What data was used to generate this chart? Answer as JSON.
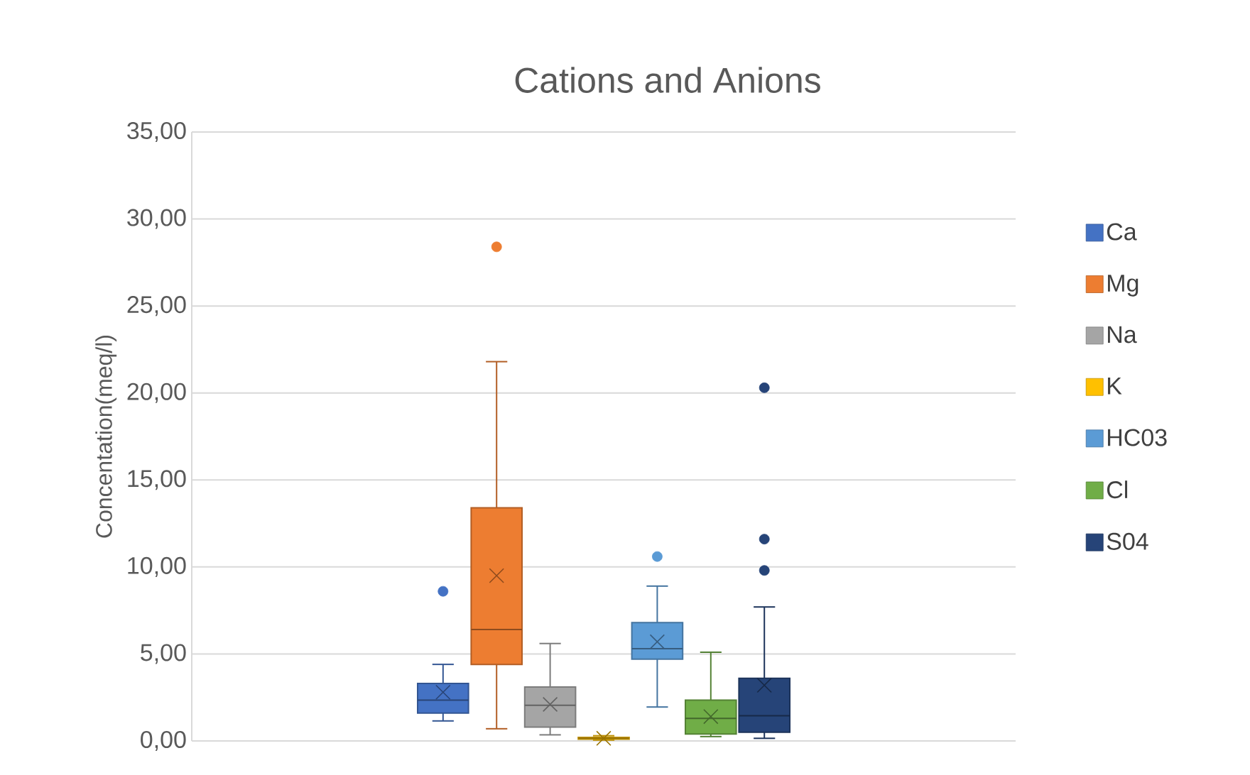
{
  "chart_data": {
    "type": "box",
    "title": "Cations and Anions",
    "ylabel": "Concentation(meq/l)",
    "categories": [
      null
    ],
    "series": [
      {
        "name": "Ca",
        "color": "#4472c4",
        "boxes": [
          {
            "low": 1.15,
            "q1": 1.6,
            "median": 2.35,
            "q3": 3.3,
            "high": 4.4,
            "mean": 2.8,
            "outliers": [
              8.6
            ]
          }
        ]
      },
      {
        "name": "Mg",
        "color": "#ed7d31",
        "boxes": [
          {
            "low": 0.7,
            "q1": 4.4,
            "median": 6.4,
            "q3": 13.4,
            "high": 21.8,
            "mean": 9.5,
            "outliers": [
              28.4
            ]
          }
        ]
      },
      {
        "name": "Na",
        "color": "#a5a5a5",
        "boxes": [
          {
            "low": 0.35,
            "q1": 0.8,
            "median": 2.05,
            "q3": 3.1,
            "high": 5.6,
            "mean": 2.1
          }
        ]
      },
      {
        "name": "K",
        "color": "#ffc000",
        "boxes": [
          {
            "low": 0.05,
            "q1": 0.1,
            "median": 0.15,
            "q3": 0.2,
            "high": 0.3,
            "mean": 0.15
          }
        ]
      },
      {
        "name": "HC03",
        "color": "#5b9bd5",
        "boxes": [
          {
            "low": 1.95,
            "q1": 4.7,
            "median": 5.3,
            "q3": 6.8,
            "high": 8.9,
            "mean": 5.7,
            "outliers": [
              10.6
            ]
          }
        ]
      },
      {
        "name": "Cl",
        "color": "#70ad47",
        "boxes": [
          {
            "low": 0.25,
            "q1": 0.4,
            "median": 1.3,
            "q3": 2.35,
            "high": 5.1,
            "mean": 1.4
          }
        ]
      },
      {
        "name": "S04",
        "color": "#264478",
        "boxes": [
          {
            "low": 0.15,
            "q1": 0.5,
            "median": 1.45,
            "q3": 3.6,
            "high": 7.7,
            "mean": 3.2,
            "outliers": [
              9.8,
              11.6,
              20.3
            ]
          }
        ]
      }
    ],
    "ylim": [
      0,
      35
    ],
    "yticks": [
      {
        "value": 0,
        "label": "0,00"
      },
      {
        "value": 5,
        "label": "5,00"
      },
      {
        "value": 10,
        "label": "10,00"
      },
      {
        "value": 15,
        "label": "15,00"
      },
      {
        "value": 20,
        "label": "20,00"
      },
      {
        "value": 25,
        "label": "25,00"
      },
      {
        "value": 30,
        "label": "30,00"
      },
      {
        "value": 35,
        "label": "35,00"
      }
    ],
    "grid": "y",
    "legend": "right",
    "tick_labels": "y"
  }
}
